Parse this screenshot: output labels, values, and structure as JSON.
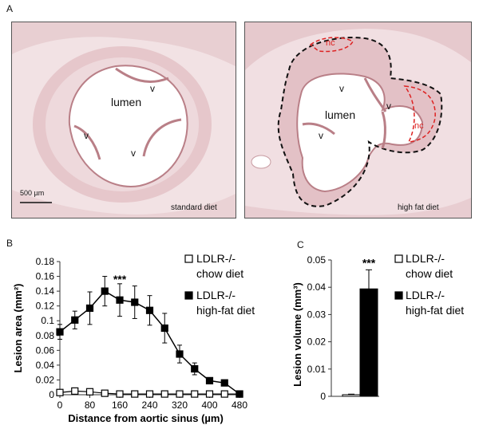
{
  "panels": {
    "a": {
      "letter": "A",
      "left": {
        "lumen": "lumen",
        "valves": [
          "v",
          "v",
          "v"
        ],
        "scale_bar": "500 µm",
        "diet": "standard diet"
      },
      "right": {
        "lumen": "lumen",
        "valves": [
          "v",
          "v",
          "v"
        ],
        "necrotic_core": [
          "nc",
          "nc"
        ],
        "diet": "high fat diet"
      }
    },
    "b": {
      "letter": "B"
    },
    "c": {
      "letter": "C"
    }
  },
  "chart_data": [
    {
      "type": "line",
      "panel": "B",
      "ylabel": "Lesion area (mm²)",
      "xlabel": "Distance from aortic sinus (µm)",
      "x": [
        0,
        40,
        80,
        120,
        160,
        200,
        240,
        280,
        320,
        360,
        400,
        440,
        480
      ],
      "xticks": [
        "0",
        "80",
        "160",
        "240",
        "320",
        "400",
        "480"
      ],
      "xlim": [
        0,
        480
      ],
      "ylim": [
        0,
        0.18
      ],
      "yticks": [
        "0",
        "0.02",
        "0.04",
        "0.06",
        "0.08",
        "0.1",
        "0.12",
        "0.14",
        "0.16",
        "0.18"
      ],
      "annotation": "***",
      "series": [
        {
          "name": "LDLR-/- chow diet",
          "legend_line1": "LDLR-/-",
          "legend_line2": "chow diet",
          "marker": "open-square",
          "values": [
            0.003,
            0.005,
            0.004,
            0.002,
            0.001,
            0.001,
            0.001,
            0.001,
            0.001,
            0.001,
            0.001,
            0.001,
            0.001
          ],
          "errors": [
            0.002,
            0.002,
            0.002,
            0.001,
            0.001,
            0.001,
            0.001,
            0.001,
            0.001,
            0.001,
            0.001,
            0.001,
            0.001
          ]
        },
        {
          "name": "LDLR-/- high-fat diet",
          "legend_line1": "LDLR-/-",
          "legend_line2": "high-fat diet",
          "marker": "filled-square",
          "values": [
            0.085,
            0.101,
            0.117,
            0.14,
            0.128,
            0.125,
            0.114,
            0.09,
            0.055,
            0.035,
            0.019,
            0.016,
            0.001
          ],
          "errors": [
            0.01,
            0.012,
            0.022,
            0.02,
            0.022,
            0.022,
            0.02,
            0.02,
            0.012,
            0.008,
            0.004,
            0.003,
            0.001
          ]
        }
      ]
    },
    {
      "type": "bar",
      "panel": "C",
      "ylabel": "Lesion  volume (mm³)",
      "ylim": [
        0,
        0.05
      ],
      "yticks": [
        "0",
        "0.01",
        "0.02",
        "0.03",
        "0.04",
        "0.05"
      ],
      "annotation": "***",
      "categories": [
        "LDLR-/- chow diet",
        "LDLR-/- high-fat diet"
      ],
      "values": [
        0.0006,
        0.0394
      ],
      "errors": [
        0.0002,
        0.007
      ],
      "legend": [
        {
          "line1": "LDLR-/-",
          "line2": "chow diet",
          "marker": "open-square"
        },
        {
          "line1": "LDLR-/-",
          "line2": "high-fat diet",
          "marker": "filled-square"
        }
      ]
    }
  ]
}
